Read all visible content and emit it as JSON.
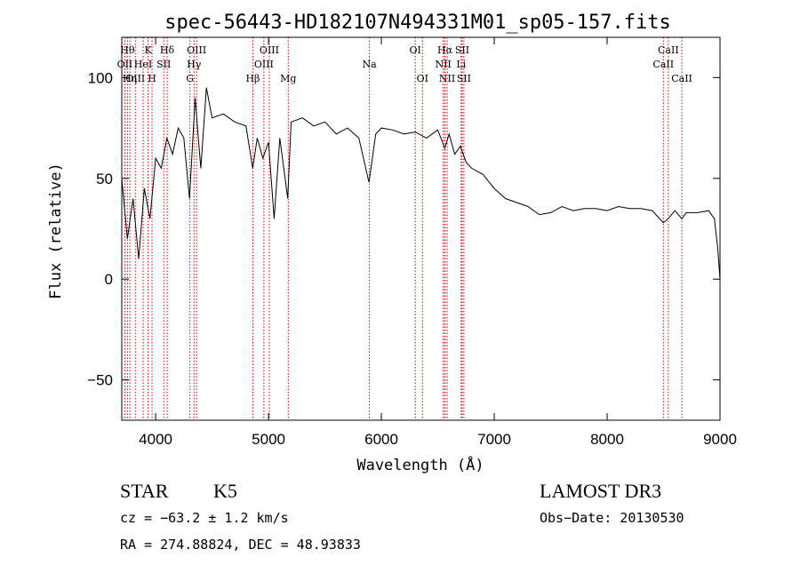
{
  "chart_data": {
    "type": "line",
    "title": "spec-56443-HD182107N494331M01_sp05-157.fits",
    "xlabel": "Wavelength (Å)",
    "ylabel": "Flux (relative)",
    "xlim": [
      3700,
      9000
    ],
    "ylim": [
      -70,
      120
    ],
    "xticks": [
      4000,
      5000,
      6000,
      7000,
      8000,
      9000
    ],
    "yticks": [
      -50,
      0,
      50,
      100
    ],
    "grid": false,
    "line_color": "#000000",
    "marker_color": "#cc0000",
    "series": [
      {
        "x": [
          3700,
          3750,
          3800,
          3850,
          3900,
          3950,
          4000,
          4050,
          4100,
          4150,
          4200,
          4250,
          4300,
          4350,
          4400,
          4450,
          4500,
          4600,
          4700,
          4800,
          4860,
          4900,
          4950,
          5000,
          5050,
          5100,
          5170,
          5200,
          5300,
          5400,
          5500,
          5600,
          5700,
          5800,
          5890,
          5950,
          6000,
          6100,
          6200,
          6300,
          6400,
          6500,
          6563,
          6600,
          6650,
          6700,
          6750,
          6800,
          6900,
          7000,
          7100,
          7200,
          7300,
          7400,
          7500,
          7600,
          7700,
          7800,
          7900,
          8000,
          8100,
          8200,
          8300,
          8400,
          8498,
          8542,
          8600,
          8662,
          8700,
          8800,
          8900,
          8950,
          8980,
          9000
        ],
        "y": [
          50,
          20,
          40,
          10,
          45,
          30,
          60,
          55,
          70,
          62,
          75,
          70,
          40,
          90,
          55,
          95,
          80,
          82,
          78,
          76,
          55,
          70,
          60,
          68,
          30,
          70,
          40,
          78,
          80,
          76,
          78,
          72,
          75,
          70,
          48,
          72,
          75,
          74,
          72,
          73,
          70,
          74,
          65,
          72,
          62,
          66,
          58,
          55,
          52,
          45,
          40,
          38,
          36,
          32,
          33,
          36,
          34,
          35,
          35,
          34,
          36,
          35,
          35,
          34,
          28,
          30,
          34,
          30,
          33,
          33,
          34,
          30,
          15,
          0
        ]
      }
    ],
    "lines": [
      {
        "wl": 3727,
        "label": "OII",
        "row": 1
      },
      {
        "wl": 3750,
        "label": "Hθ",
        "row": 0
      },
      {
        "wl": 3771,
        "label": "Hη",
        "row": 2
      },
      {
        "wl": 3820,
        "label": "OIII",
        "row": 2
      },
      {
        "wl": 3889,
        "label": "HeI",
        "row": 1
      },
      {
        "wl": 3933,
        "label": "K",
        "row": 0
      },
      {
        "wl": 3968,
        "label": "H",
        "row": 2
      },
      {
        "wl": 4072,
        "label": "SII",
        "row": 1
      },
      {
        "wl": 4102,
        "label": "Hδ",
        "row": 0
      },
      {
        "wl": 4304,
        "label": "G",
        "row": 2
      },
      {
        "wl": 4340,
        "label": "Hγ",
        "row": 1
      },
      {
        "wl": 4363,
        "label": "OIII",
        "row": 0
      },
      {
        "wl": 4861,
        "label": "Hβ",
        "row": 2
      },
      {
        "wl": 4959,
        "label": "OIII",
        "row": 1
      },
      {
        "wl": 5007,
        "label": "OIII",
        "row": 0
      },
      {
        "wl": 5175,
        "label": "Mg",
        "row": 2
      },
      {
        "wl": 5894,
        "label": "Na",
        "row": 1
      },
      {
        "wl": 6300,
        "label": "OI",
        "row": 0
      },
      {
        "wl": 6364,
        "label": "OI",
        "row": 2
      },
      {
        "wl": 6548,
        "label": "NII",
        "row": 1
      },
      {
        "wl": 6563,
        "label": "Hα",
        "row": 0
      },
      {
        "wl": 6583,
        "label": "NII",
        "row": 2
      },
      {
        "wl": 6707,
        "label": "Li",
        "row": 1
      },
      {
        "wl": 6716,
        "label": "SII",
        "row": 0
      },
      {
        "wl": 6731,
        "label": "SII",
        "row": 2
      },
      {
        "wl": 8498,
        "label": "CaII",
        "row": 1
      },
      {
        "wl": 8542,
        "label": "CaII",
        "row": 0
      },
      {
        "wl": 8662,
        "label": "CaII",
        "row": 2
      }
    ]
  },
  "info": {
    "class": "STAR",
    "subclass": "K5",
    "survey": "LAMOST DR3",
    "cz": "cz = −63.2 ± 1.2 km/s",
    "obs_date": "Obs−Date: 20130530",
    "radec": "RA = 274.88824, DEC =  48.93833"
  }
}
